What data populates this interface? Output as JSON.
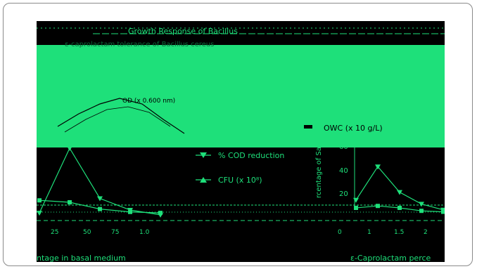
{
  "colors": {
    "background": "#000000",
    "green": "#1ee07a",
    "frame": "#8a8a8a"
  },
  "header": {
    "title": "Growth Response of Bacillus",
    "subtitle": "ε-caprolactam tolerance of Bacillus cereus"
  },
  "chart_data": [
    {
      "type": "line",
      "xlabel": "ntage in basal medium",
      "ylabel": "",
      "legend_position": "center",
      "x": [
        0,
        0.25,
        0.5,
        0.75,
        1.0
      ],
      "x_tick_labels": [
        "25",
        "50",
        "75",
        "1.0"
      ],
      "series": [
        {
          "name": "% COD reduction",
          "values": [
            5,
            72,
            20,
            8,
            3
          ]
        },
        {
          "name": "CFU (x 10⁸)",
          "values": [
            18,
            16,
            9,
            6,
            5
          ]
        }
      ],
      "annotation": "OD (x 0.600 nm)"
    },
    {
      "type": "line",
      "xlabel": "ε-Caprolactam perce",
      "ylabel": "rcentage of Sa",
      "yticks": [
        20,
        40,
        60
      ],
      "ylim": [
        0,
        80
      ],
      "x": [
        0,
        0.5,
        1.0,
        1.5,
        2.0
      ],
      "x_tick_labels": [
        "0",
        "1",
        "1.5",
        "2"
      ],
      "legend_entries": [
        "OWC (x 10 g/L)"
      ],
      "series": [
        {
          "name": "",
          "values": [
            18,
            52,
            26,
            14,
            8
          ]
        },
        {
          "name": "",
          "values": [
            10,
            12,
            10,
            7,
            6
          ]
        }
      ]
    }
  ]
}
